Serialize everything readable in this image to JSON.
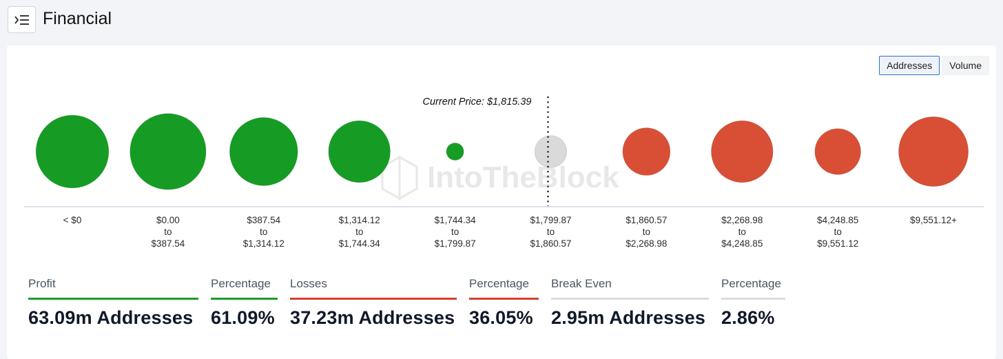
{
  "header": {
    "title": "Financial",
    "menu_icon": "collapse-menu-icon"
  },
  "toggle": {
    "options": [
      "Addresses",
      "Volume"
    ],
    "selected": "Addresses"
  },
  "watermark": "IntoTheBlock",
  "chart_data": {
    "type": "bubble",
    "current_price_label": "Current Price: $1,815.39",
    "current_price_position": "between $1,799.87 to $1,860.57 bucket and next",
    "colors": {
      "profit": "#169c25",
      "losses": "#d84f36",
      "break_even": "#dadada",
      "axis": "#b7c4d6"
    },
    "buckets": [
      {
        "label_lines": [
          "< $0"
        ],
        "status": "profit",
        "relative_size": 0.46
      },
      {
        "label_lines": [
          "$0.00",
          "to",
          "$387.54"
        ],
        "status": "profit",
        "relative_size": 0.48
      },
      {
        "label_lines": [
          "$387.54",
          "to",
          "$1,314.12"
        ],
        "status": "profit",
        "relative_size": 0.43
      },
      {
        "label_lines": [
          "$1,314.12",
          "to",
          "$1,744.34"
        ],
        "status": "profit",
        "relative_size": 0.39
      },
      {
        "label_lines": [
          "$1,744.34",
          "to",
          "$1,799.87"
        ],
        "status": "profit",
        "relative_size": 0.11
      },
      {
        "label_lines": [
          "$1,799.87",
          "to",
          "$1,860.57"
        ],
        "status": "break_even",
        "relative_size": 0.2
      },
      {
        "label_lines": [
          "$1,860.57",
          "to",
          "$2,268.98"
        ],
        "status": "losses",
        "relative_size": 0.3
      },
      {
        "label_lines": [
          "$2,268.98",
          "to",
          "$4,248.85"
        ],
        "status": "losses",
        "relative_size": 0.39
      },
      {
        "label_lines": [
          "$4,248.85",
          "to",
          "$9,551.12"
        ],
        "status": "losses",
        "relative_size": 0.29
      },
      {
        "label_lines": [
          "$9,551.12+"
        ],
        "status": "losses",
        "relative_size": 0.44
      }
    ]
  },
  "summary": [
    {
      "label": "Profit",
      "value": "63.09m Addresses",
      "color": "#1b9a2a"
    },
    {
      "label": "Percentage",
      "value": "61.09%",
      "color": "#1b9a2a"
    },
    {
      "label": "Losses",
      "value": "37.23m Addresses",
      "color": "#d63f2f"
    },
    {
      "label": "Percentage",
      "value": "36.05%",
      "color": "#d63f2f"
    },
    {
      "label": "Break Even",
      "value": "2.95m Addresses",
      "color": "#dcdcdc"
    },
    {
      "label": "Percentage",
      "value": "2.86%",
      "color": "#dcdcdc"
    }
  ]
}
